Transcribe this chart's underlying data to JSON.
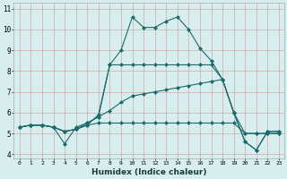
{
  "xlabel": "Humidex (Indice chaleur)",
  "background_color": "#d8eeee",
  "grid_color": "#c0dede",
  "line_color": "#1a6b6b",
  "xlim": [
    -0.5,
    23.5
  ],
  "ylim": [
    3.8,
    11.3
  ],
  "xticks": [
    0,
    1,
    2,
    3,
    4,
    5,
    6,
    7,
    8,
    9,
    10,
    11,
    12,
    13,
    14,
    15,
    16,
    17,
    18,
    19,
    20,
    21,
    22,
    23
  ],
  "yticks": [
    4,
    5,
    6,
    7,
    8,
    9,
    10,
    11
  ],
  "line1_y": [
    5.3,
    5.4,
    5.4,
    5.3,
    4.5,
    5.3,
    5.5,
    5.8,
    8.3,
    9.0,
    10.6,
    10.1,
    10.1,
    10.4,
    10.6,
    10.0,
    9.1,
    8.5,
    7.6,
    6.0,
    4.6,
    4.2,
    5.1,
    5.1
  ],
  "line2_y": [
    5.3,
    5.4,
    5.4,
    5.3,
    5.1,
    5.2,
    5.4,
    5.9,
    8.3,
    8.3,
    8.3,
    8.3,
    8.3,
    8.3,
    8.3,
    8.3,
    8.3,
    8.3,
    7.6,
    6.0,
    4.6,
    4.2,
    5.1,
    5.1
  ],
  "line3_y": [
    5.3,
    5.4,
    5.4,
    5.3,
    5.1,
    5.2,
    5.5,
    5.8,
    6.1,
    6.5,
    6.8,
    6.9,
    7.0,
    7.1,
    7.2,
    7.3,
    7.4,
    7.5,
    7.6,
    6.0,
    5.0,
    5.0,
    5.0,
    5.0
  ],
  "line4_y": [
    5.3,
    5.4,
    5.4,
    5.3,
    5.1,
    5.2,
    5.4,
    5.5,
    5.5,
    5.5,
    5.5,
    5.5,
    5.5,
    5.5,
    5.5,
    5.5,
    5.5,
    5.5,
    5.5,
    5.5,
    5.0,
    5.0,
    5.0,
    5.0
  ]
}
